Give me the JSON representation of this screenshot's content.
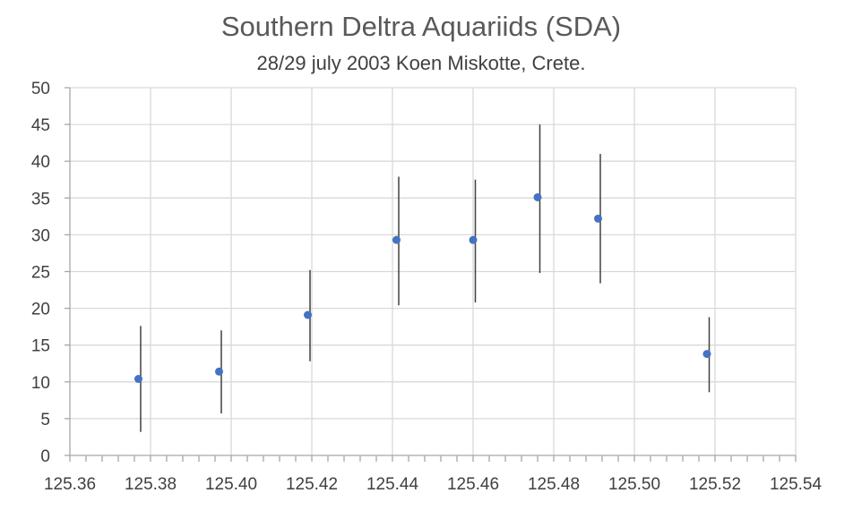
{
  "chart_data": {
    "type": "scatter",
    "title": "Southern Deltra Aquariids (SDA)",
    "subtitle": "28/29 july 2003 Koen Miskotte, Crete.",
    "xlabel": "",
    "ylabel": "",
    "xlim": [
      125.36,
      125.54
    ],
    "ylim": [
      0,
      50
    ],
    "x_ticks": [
      "125.36",
      "125.38",
      "125.40",
      "125.42",
      "125.44",
      "125.46",
      "125.48",
      "125.50",
      "125.52",
      "125.54"
    ],
    "y_ticks": [
      "0",
      "5",
      "10",
      "15",
      "20",
      "25",
      "30",
      "35",
      "40",
      "45",
      "50"
    ],
    "grid": true,
    "legend": "none",
    "marker_color": "#4472c4",
    "errorbar_color": "#404040",
    "points": [
      {
        "x": 125.377,
        "y": 10.4,
        "y_low": 3.2,
        "y_high": 17.6
      },
      {
        "x": 125.397,
        "y": 11.4,
        "y_low": 5.7,
        "y_high": 17.0
      },
      {
        "x": 125.419,
        "y": 19.1,
        "y_low": 12.8,
        "y_high": 25.2
      },
      {
        "x": 125.441,
        "y": 29.3,
        "y_low": 20.4,
        "y_high": 37.9
      },
      {
        "x": 125.46,
        "y": 29.3,
        "y_low": 20.8,
        "y_high": 37.5
      },
      {
        "x": 125.476,
        "y": 35.1,
        "y_low": 24.8,
        "y_high": 45.0
      },
      {
        "x": 125.491,
        "y": 32.2,
        "y_low": 23.4,
        "y_high": 41.0
      },
      {
        "x": 125.518,
        "y": 13.8,
        "y_low": 8.6,
        "y_high": 18.8
      }
    ]
  }
}
